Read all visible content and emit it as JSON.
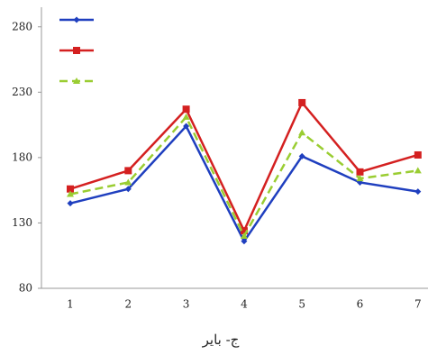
{
  "chart_data": {
    "type": "line",
    "categories": [
      "1",
      "2",
      "3",
      "4",
      "5",
      "6",
      "7"
    ],
    "x_label": "ج- بایر",
    "ylim": [
      80,
      295
    ],
    "yticks": [
      80,
      130,
      180,
      230,
      280
    ],
    "series": [
      {
        "color": "#1f3fbf",
        "marker": "diamond",
        "dash": false,
        "values": [
          145,
          156,
          204,
          116,
          181,
          161,
          154
        ]
      },
      {
        "color": "#d42020",
        "marker": "square",
        "dash": false,
        "values": [
          156,
          170,
          217,
          124,
          222,
          169,
          182
        ]
      },
      {
        "color": "#9acd32",
        "marker": "triangle",
        "dash": true,
        "values": [
          152,
          161,
          211,
          120,
          199,
          164,
          170
        ]
      }
    ]
  }
}
